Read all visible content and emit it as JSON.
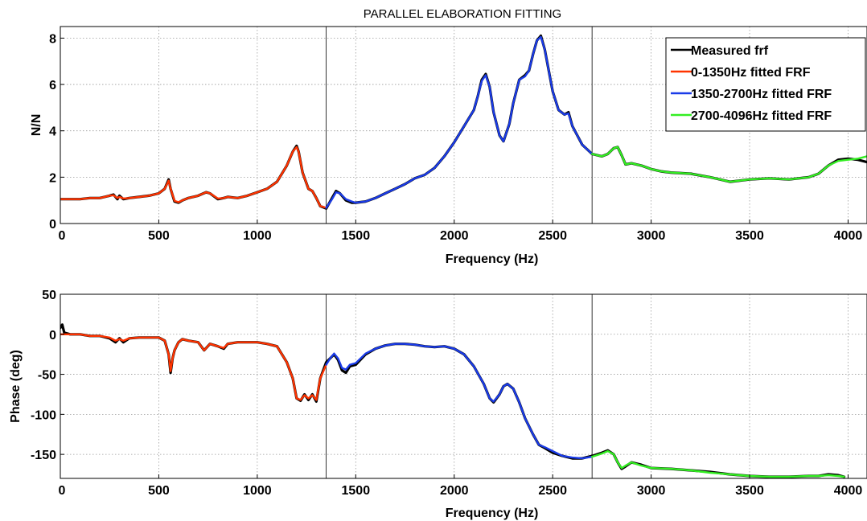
{
  "chart_data": [
    {
      "type": "line",
      "title": "PARALLEL ELABORATION FITTING",
      "xlabel": "Frequency (Hz)",
      "ylabel": "N/N",
      "xlim": [
        0,
        4096
      ],
      "ylim": [
        0,
        8.5
      ],
      "xticks": [
        0,
        500,
        1000,
        1500,
        2000,
        2500,
        3000,
        3500,
        4000
      ],
      "yticks": [
        0,
        2,
        4,
        6,
        8
      ],
      "grid": true,
      "legend_position": "top-right",
      "vertical_lines": [
        1350,
        2700
      ],
      "series": [
        {
          "name": "Measured frf",
          "color": "#000000",
          "x": [
            0,
            50,
            100,
            150,
            200,
            250,
            270,
            290,
            300,
            320,
            350,
            400,
            450,
            500,
            530,
            550,
            560,
            580,
            600,
            620,
            650,
            700,
            740,
            760,
            800,
            830,
            850,
            900,
            950,
            1000,
            1050,
            1100,
            1150,
            1180,
            1200,
            1210,
            1230,
            1260,
            1280,
            1300,
            1320,
            1350,
            1380,
            1400,
            1420,
            1450,
            1480,
            1500,
            1550,
            1600,
            1650,
            1700,
            1750,
            1800,
            1850,
            1900,
            1950,
            2000,
            2050,
            2100,
            2120,
            2140,
            2160,
            2180,
            2200,
            2230,
            2250,
            2280,
            2300,
            2330,
            2360,
            2380,
            2400,
            2420,
            2440,
            2460,
            2480,
            2500,
            2530,
            2560,
            2580,
            2600,
            2650,
            2700,
            2750,
            2780,
            2810,
            2830,
            2850,
            2870,
            2900,
            2950,
            3000,
            3050,
            3100,
            3200,
            3300,
            3400,
            3500,
            3600,
            3700,
            3800,
            3850,
            3900,
            3950,
            4000,
            4050,
            4096
          ],
          "y": [
            1.05,
            1.05,
            1.05,
            1.1,
            1.1,
            1.2,
            1.25,
            1.05,
            1.2,
            1.05,
            1.1,
            1.15,
            1.2,
            1.3,
            1.5,
            1.9,
            1.5,
            0.95,
            0.9,
            1.0,
            1.1,
            1.2,
            1.35,
            1.3,
            1.05,
            1.1,
            1.15,
            1.1,
            1.2,
            1.35,
            1.5,
            1.8,
            2.5,
            3.1,
            3.35,
            3.1,
            2.2,
            1.5,
            1.4,
            1.1,
            0.75,
            0.65,
            1.1,
            1.4,
            1.3,
            1.0,
            0.9,
            0.9,
            0.95,
            1.1,
            1.3,
            1.5,
            1.7,
            1.95,
            2.1,
            2.4,
            2.9,
            3.5,
            4.2,
            4.9,
            5.5,
            6.2,
            6.45,
            5.9,
            4.8,
            3.8,
            3.55,
            4.3,
            5.2,
            6.2,
            6.4,
            6.6,
            7.3,
            7.9,
            8.1,
            7.5,
            6.6,
            5.7,
            4.9,
            4.7,
            4.8,
            4.2,
            3.4,
            3.0,
            2.9,
            3.0,
            3.25,
            3.3,
            2.95,
            2.55,
            2.6,
            2.5,
            2.35,
            2.25,
            2.2,
            2.15,
            2.0,
            1.8,
            1.9,
            1.95,
            1.9,
            2.0,
            2.15,
            2.5,
            2.75,
            2.8,
            2.75,
            2.65
          ]
        },
        {
          "name": "0-1350Hz fitted FRF",
          "color": "#ff3300",
          "x": [
            0,
            50,
            100,
            150,
            200,
            250,
            270,
            290,
            300,
            320,
            350,
            400,
            450,
            500,
            530,
            550,
            560,
            580,
            600,
            620,
            650,
            700,
            740,
            760,
            800,
            830,
            850,
            900,
            950,
            1000,
            1050,
            1100,
            1150,
            1180,
            1200,
            1210,
            1230,
            1260,
            1280,
            1300,
            1320,
            1350
          ],
          "y": [
            1.05,
            1.05,
            1.05,
            1.1,
            1.1,
            1.2,
            1.22,
            1.1,
            1.15,
            1.08,
            1.1,
            1.15,
            1.2,
            1.3,
            1.5,
            1.85,
            1.5,
            0.98,
            0.92,
            1.0,
            1.1,
            1.2,
            1.35,
            1.3,
            1.08,
            1.1,
            1.15,
            1.1,
            1.2,
            1.35,
            1.5,
            1.8,
            2.5,
            3.1,
            3.3,
            3.1,
            2.2,
            1.5,
            1.4,
            1.1,
            0.75,
            0.68
          ]
        },
        {
          "name": "1350-2700Hz fitted FRF",
          "color": "#1a3be8",
          "x": [
            1350,
            1380,
            1400,
            1420,
            1450,
            1480,
            1500,
            1550,
            1600,
            1650,
            1700,
            1750,
            1800,
            1850,
            1900,
            1950,
            2000,
            2050,
            2100,
            2120,
            2140,
            2160,
            2180,
            2200,
            2230,
            2250,
            2280,
            2300,
            2330,
            2360,
            2380,
            2400,
            2420,
            2440,
            2460,
            2480,
            2500,
            2530,
            2560,
            2580,
            2600,
            2650,
            2700
          ],
          "y": [
            0.68,
            1.05,
            1.35,
            1.3,
            1.05,
            0.95,
            0.9,
            0.95,
            1.1,
            1.3,
            1.5,
            1.7,
            1.95,
            2.1,
            2.4,
            2.9,
            3.5,
            4.2,
            4.9,
            5.5,
            6.15,
            6.4,
            5.9,
            4.8,
            3.8,
            3.55,
            4.3,
            5.2,
            6.2,
            6.35,
            6.6,
            7.3,
            7.9,
            8.05,
            7.5,
            6.6,
            5.7,
            4.9,
            4.7,
            4.75,
            4.2,
            3.4,
            3.0
          ]
        },
        {
          "name": "2700-4096Hz fitted FRF",
          "color": "#33ee22",
          "x": [
            2700,
            2750,
            2780,
            2810,
            2830,
            2850,
            2870,
            2900,
            2950,
            3000,
            3050,
            3100,
            3200,
            3300,
            3400,
            3500,
            3600,
            3700,
            3800,
            3850,
            3900,
            3950,
            4000,
            4050,
            4096
          ],
          "y": [
            3.0,
            2.9,
            3.0,
            3.25,
            3.3,
            2.95,
            2.55,
            2.6,
            2.5,
            2.35,
            2.25,
            2.2,
            2.15,
            2.0,
            1.8,
            1.9,
            1.95,
            1.9,
            2.0,
            2.15,
            2.5,
            2.7,
            2.75,
            2.8,
            2.9
          ]
        }
      ]
    },
    {
      "type": "line",
      "title": "",
      "xlabel": "Frequency (Hz)",
      "ylabel": "Phase (deg)",
      "xlim": [
        0,
        4096
      ],
      "ylim": [
        -180,
        50
      ],
      "xticks": [
        0,
        500,
        1000,
        1500,
        2000,
        2500,
        3000,
        3500,
        4000
      ],
      "yticks": [
        -150,
        -100,
        -50,
        0,
        50
      ],
      "grid": true,
      "vertical_lines": [
        1350,
        2700
      ],
      "series": [
        {
          "name": "Measured frf",
          "color": "#000000",
          "x": [
            0,
            10,
            20,
            50,
            100,
            150,
            200,
            250,
            280,
            300,
            320,
            350,
            400,
            450,
            500,
            530,
            550,
            560,
            570,
            580,
            600,
            620,
            650,
            700,
            730,
            760,
            800,
            830,
            850,
            900,
            950,
            1000,
            1050,
            1100,
            1150,
            1180,
            1200,
            1220,
            1240,
            1260,
            1280,
            1300,
            1320,
            1350,
            1370,
            1390,
            1410,
            1430,
            1450,
            1470,
            1500,
            1550,
            1600,
            1650,
            1700,
            1750,
            1800,
            1850,
            1900,
            1950,
            2000,
            2050,
            2100,
            2150,
            2180,
            2200,
            2230,
            2250,
            2270,
            2300,
            2330,
            2360,
            2400,
            2430,
            2460,
            2500,
            2550,
            2600,
            2650,
            2700,
            2750,
            2780,
            2810,
            2830,
            2850,
            2870,
            2900,
            2950,
            3000,
            3100,
            3200,
            3300,
            3400,
            3500,
            3600,
            3700,
            3800,
            3850,
            3900,
            3950,
            3980
          ],
          "y": [
            8,
            12,
            2,
            0,
            0,
            -2,
            -2,
            -5,
            -10,
            -5,
            -10,
            -5,
            -4,
            -4,
            -4,
            -8,
            -25,
            -48,
            -30,
            -20,
            -10,
            -6,
            -8,
            -10,
            -20,
            -12,
            -15,
            -18,
            -12,
            -10,
            -10,
            -10,
            -12,
            -15,
            -35,
            -55,
            -80,
            -83,
            -75,
            -82,
            -75,
            -84,
            -55,
            -35,
            -30,
            -25,
            -32,
            -45,
            -48,
            -40,
            -38,
            -25,
            -18,
            -14,
            -12,
            -12,
            -13,
            -15,
            -16,
            -15,
            -18,
            -25,
            -40,
            -62,
            -80,
            -85,
            -75,
            -65,
            -62,
            -68,
            -85,
            -105,
            -125,
            -138,
            -142,
            -148,
            -152,
            -155,
            -155,
            -152,
            -148,
            -145,
            -150,
            -160,
            -168,
            -165,
            -160,
            -163,
            -167,
            -168,
            -170,
            -172,
            -175,
            -177,
            -178,
            -178,
            -177,
            -177,
            -175,
            -176,
            -178
          ]
        },
        {
          "name": "0-1350Hz fitted FRF",
          "color": "#ff3300",
          "x": [
            0,
            50,
            100,
            150,
            200,
            250,
            280,
            300,
            320,
            350,
            400,
            450,
            500,
            530,
            550,
            560,
            570,
            580,
            600,
            620,
            650,
            700,
            730,
            760,
            800,
            830,
            850,
            900,
            950,
            1000,
            1050,
            1100,
            1150,
            1180,
            1200,
            1220,
            1240,
            1260,
            1280,
            1300,
            1320,
            1350
          ],
          "y": [
            0,
            0,
            0,
            -2,
            -2,
            -4,
            -8,
            -6,
            -8,
            -5,
            -4,
            -4,
            -4,
            -8,
            -25,
            -46,
            -30,
            -20,
            -10,
            -6,
            -8,
            -10,
            -20,
            -12,
            -15,
            -17,
            -12,
            -10,
            -10,
            -10,
            -12,
            -15,
            -35,
            -55,
            -80,
            -82,
            -76,
            -80,
            -76,
            -82,
            -55,
            -38
          ]
        },
        {
          "name": "1350-2700Hz fitted FRF",
          "color": "#1a3be8",
          "x": [
            1350,
            1370,
            1390,
            1410,
            1430,
            1450,
            1470,
            1500,
            1550,
            1600,
            1650,
            1700,
            1750,
            1800,
            1850,
            1900,
            1950,
            2000,
            2050,
            2100,
            2150,
            2180,
            2200,
            2230,
            2250,
            2270,
            2300,
            2330,
            2360,
            2400,
            2430,
            2460,
            2500,
            2550,
            2600,
            2650,
            2700
          ],
          "y": [
            -38,
            -30,
            -24,
            -30,
            -42,
            -44,
            -38,
            -36,
            -24,
            -18,
            -14,
            -12,
            -12,
            -13,
            -15,
            -16,
            -15,
            -18,
            -25,
            -40,
            -62,
            -80,
            -84,
            -75,
            -65,
            -62,
            -68,
            -85,
            -105,
            -125,
            -138,
            -141,
            -146,
            -152,
            -154,
            -155,
            -153
          ]
        },
        {
          "name": "2700-4096Hz fitted FRF",
          "color": "#33ee22",
          "x": [
            2700,
            2750,
            2780,
            2810,
            2830,
            2850,
            2870,
            2900,
            2950,
            3000,
            3100,
            3200,
            3300,
            3400,
            3500,
            3600,
            3700,
            3800,
            3850,
            3900,
            3950,
            3980
          ],
          "y": [
            -153,
            -149,
            -146,
            -150,
            -160,
            -167,
            -164,
            -160,
            -164,
            -167,
            -168,
            -170,
            -173,
            -175,
            -177,
            -178,
            -178,
            -177,
            -177,
            -176,
            -177,
            -178
          ]
        }
      ]
    }
  ]
}
